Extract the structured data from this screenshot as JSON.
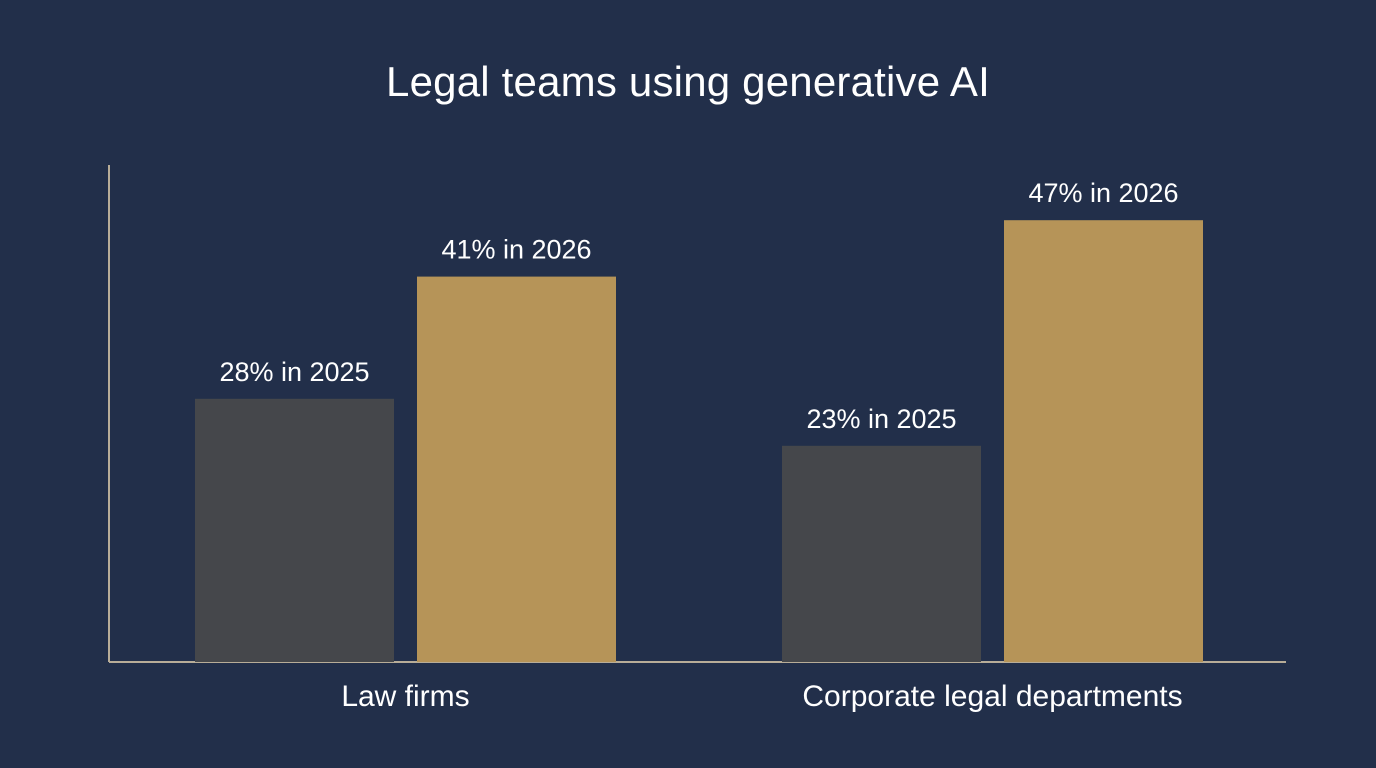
{
  "chart_data": {
    "type": "bar",
    "title": "Legal teams using generative AI",
    "xlabel": "",
    "ylabel": "",
    "ylim": [
      0,
      55
    ],
    "grid": false,
    "categories": [
      "Law firms",
      "Corporate legal departments"
    ],
    "series": [
      {
        "year": "2025",
        "values": [
          28,
          23
        ],
        "labels": [
          "28% in 2025",
          "23% in 2025"
        ],
        "color": "#45474b"
      },
      {
        "year": "2026",
        "values": [
          41,
          47
        ],
        "labels": [
          "41% in 2026",
          "47% in 2026"
        ],
        "color": "#b69458"
      }
    ],
    "axis_color": "#b8ad98",
    "background": "#222f4a"
  }
}
